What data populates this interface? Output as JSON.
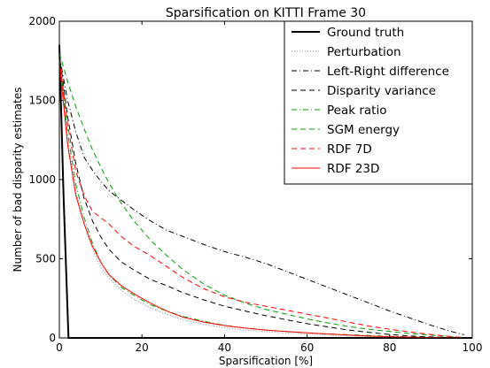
{
  "chart_data": {
    "type": "line",
    "title": "Sparsification on KITTI Frame 30",
    "xlabel": "Sparsification [%]",
    "ylabel": "Number of bad disparity estimates",
    "xlim": [
      0,
      100
    ],
    "ylim": [
      0,
      2000
    ],
    "xticks": [
      0,
      20,
      40,
      60,
      80,
      100
    ],
    "yticks": [
      0,
      500,
      1000,
      1500,
      2000
    ],
    "grid": false,
    "legend_placement": "top-right",
    "series": [
      {
        "name": "Ground truth",
        "color": "#000000",
        "style": "solid-bold",
        "x": [
          0,
          1,
          2.2,
          100
        ],
        "y": [
          1850,
          900,
          0,
          0
        ]
      },
      {
        "name": "Perturbation",
        "color": "#808080",
        "style": "dotted",
        "x": [
          0,
          2,
          4,
          6,
          8,
          10,
          12,
          15,
          18,
          22,
          26,
          30,
          35,
          40,
          45,
          50,
          55,
          60,
          65,
          70,
          75,
          80,
          85,
          90,
          95,
          99
        ],
        "y": [
          1800,
          1250,
          930,
          720,
          560,
          450,
          380,
          300,
          245,
          190,
          150,
          115,
          85,
          65,
          50,
          40,
          30,
          25,
          18,
          12,
          8,
          5,
          3,
          2,
          1,
          0
        ]
      },
      {
        "name": "Left-Right difference",
        "color": "#000000",
        "style": "dashdot",
        "x": [
          0,
          2,
          4,
          6,
          8,
          10,
          12,
          15,
          18,
          22,
          26,
          30,
          35,
          40,
          45,
          50,
          55,
          60,
          65,
          70,
          75,
          80,
          85,
          90,
          95,
          98
        ],
        "y": [
          1780,
          1500,
          1300,
          1140,
          1060,
          990,
          930,
          870,
          810,
          740,
          680,
          640,
          590,
          545,
          510,
          470,
          420,
          370,
          320,
          270,
          220,
          170,
          125,
          80,
          40,
          20
        ]
      },
      {
        "name": "Disparity variance",
        "color": "#000000",
        "style": "dashed",
        "x": [
          0,
          2,
          4,
          6,
          8,
          10,
          12,
          15,
          18,
          22,
          26,
          30,
          35,
          40,
          45,
          50,
          55,
          60,
          65,
          70,
          75,
          80,
          85,
          90,
          95,
          98
        ],
        "y": [
          1790,
          1400,
          1100,
          880,
          740,
          640,
          560,
          480,
          430,
          370,
          330,
          285,
          240,
          200,
          170,
          140,
          115,
          90,
          70,
          50,
          35,
          22,
          12,
          6,
          2,
          0
        ]
      },
      {
        "name": "Peak ratio",
        "color": "#00a000",
        "style": "dashdot",
        "x": [
          0,
          2,
          4,
          6,
          8,
          10,
          12,
          15,
          18,
          22,
          26,
          30,
          35,
          40,
          45,
          50,
          55,
          60,
          65,
          70,
          75,
          80,
          85,
          90,
          95,
          98
        ],
        "y": [
          1770,
          1300,
          970,
          760,
          600,
          480,
          400,
          320,
          270,
          210,
          170,
          135,
          105,
          80,
          62,
          50,
          40,
          32,
          25,
          20,
          15,
          10,
          6,
          3,
          1,
          0
        ]
      },
      {
        "name": "SGM energy",
        "color": "#00a000",
        "style": "dashed",
        "x": [
          0,
          2,
          4,
          6,
          8,
          10,
          12,
          15,
          18,
          22,
          26,
          30,
          35,
          40,
          45,
          50,
          55,
          60,
          65,
          70,
          75,
          80,
          85,
          90,
          95,
          98
        ],
        "y": [
          1800,
          1620,
          1460,
          1320,
          1190,
          1080,
          980,
          850,
          740,
          620,
          520,
          430,
          340,
          270,
          220,
          180,
          150,
          120,
          95,
          72,
          55,
          40,
          28,
          18,
          8,
          3
        ]
      },
      {
        "name": "RDF 7D",
        "color": "#ff0000",
        "style": "dashed",
        "x": [
          0,
          2,
          4,
          6,
          8,
          10,
          12,
          15,
          18,
          22,
          26,
          30,
          35,
          40,
          45,
          50,
          55,
          60,
          65,
          70,
          75,
          80,
          85,
          90,
          95,
          98
        ],
        "y": [
          1760,
          1350,
          1050,
          900,
          800,
          760,
          720,
          640,
          580,
          520,
          450,
          380,
          310,
          260,
          225,
          200,
          175,
          150,
          125,
          100,
          75,
          55,
          38,
          22,
          8,
          2
        ]
      },
      {
        "name": "RDF 23D",
        "color": "#ff0000",
        "style": "solid",
        "x": [
          0,
          2,
          4,
          6,
          8,
          10,
          12,
          15,
          18,
          22,
          26,
          30,
          35,
          40,
          45,
          50,
          55,
          60,
          65,
          70,
          75,
          80,
          85,
          90,
          95,
          98
        ],
        "y": [
          1740,
          1220,
          900,
          720,
          580,
          480,
          400,
          330,
          280,
          220,
          170,
          130,
          100,
          78,
          62,
          50,
          40,
          32,
          25,
          18,
          12,
          8,
          5,
          3,
          1,
          0
        ]
      }
    ]
  }
}
